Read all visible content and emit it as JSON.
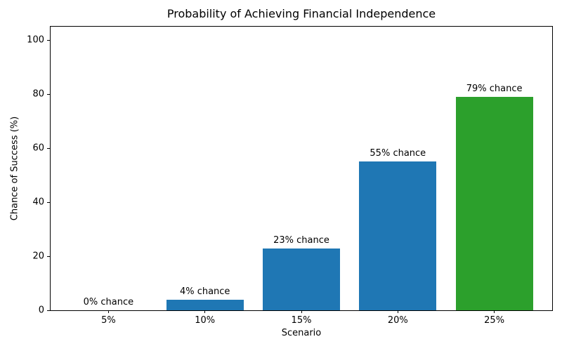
{
  "figure": {
    "background": "#ffffff"
  },
  "chart_data": {
    "type": "bar",
    "title": "Probability of Achieving Financial Independence",
    "xlabel": "Scenario",
    "ylabel": "Chance of Success (%)",
    "categories": [
      "5%",
      "10%",
      "15%",
      "20%",
      "25%"
    ],
    "values": [
      0,
      4,
      23,
      55,
      79
    ],
    "bar_labels": [
      "0% chance",
      "4% chance",
      "23% chance",
      "55% chance",
      "79% chance"
    ],
    "bar_colors": [
      "#1f77b4",
      "#1f77b4",
      "#1f77b4",
      "#1f77b4",
      "#2ca02c"
    ],
    "ylim": [
      0,
      105
    ],
    "yticks": [
      0,
      20,
      40,
      60,
      80,
      100
    ],
    "bar_width_fraction": 0.8,
    "grid": false,
    "legend": "none",
    "axis_color": "#000000",
    "text_color": "#000000"
  }
}
